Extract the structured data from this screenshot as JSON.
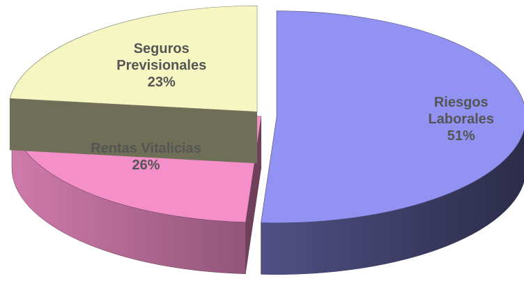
{
  "chart_data": {
    "type": "pie",
    "categories": [
      "Riesgos Laborales",
      "Rentas Vitalicias",
      "Seguros Previsionales"
    ],
    "values": [
      51,
      26,
      23
    ],
    "value_labels": [
      "51%",
      "26%",
      "23%"
    ],
    "colors": [
      "#9292f2",
      "#f48fc9",
      "#f6f6c3"
    ]
  }
}
